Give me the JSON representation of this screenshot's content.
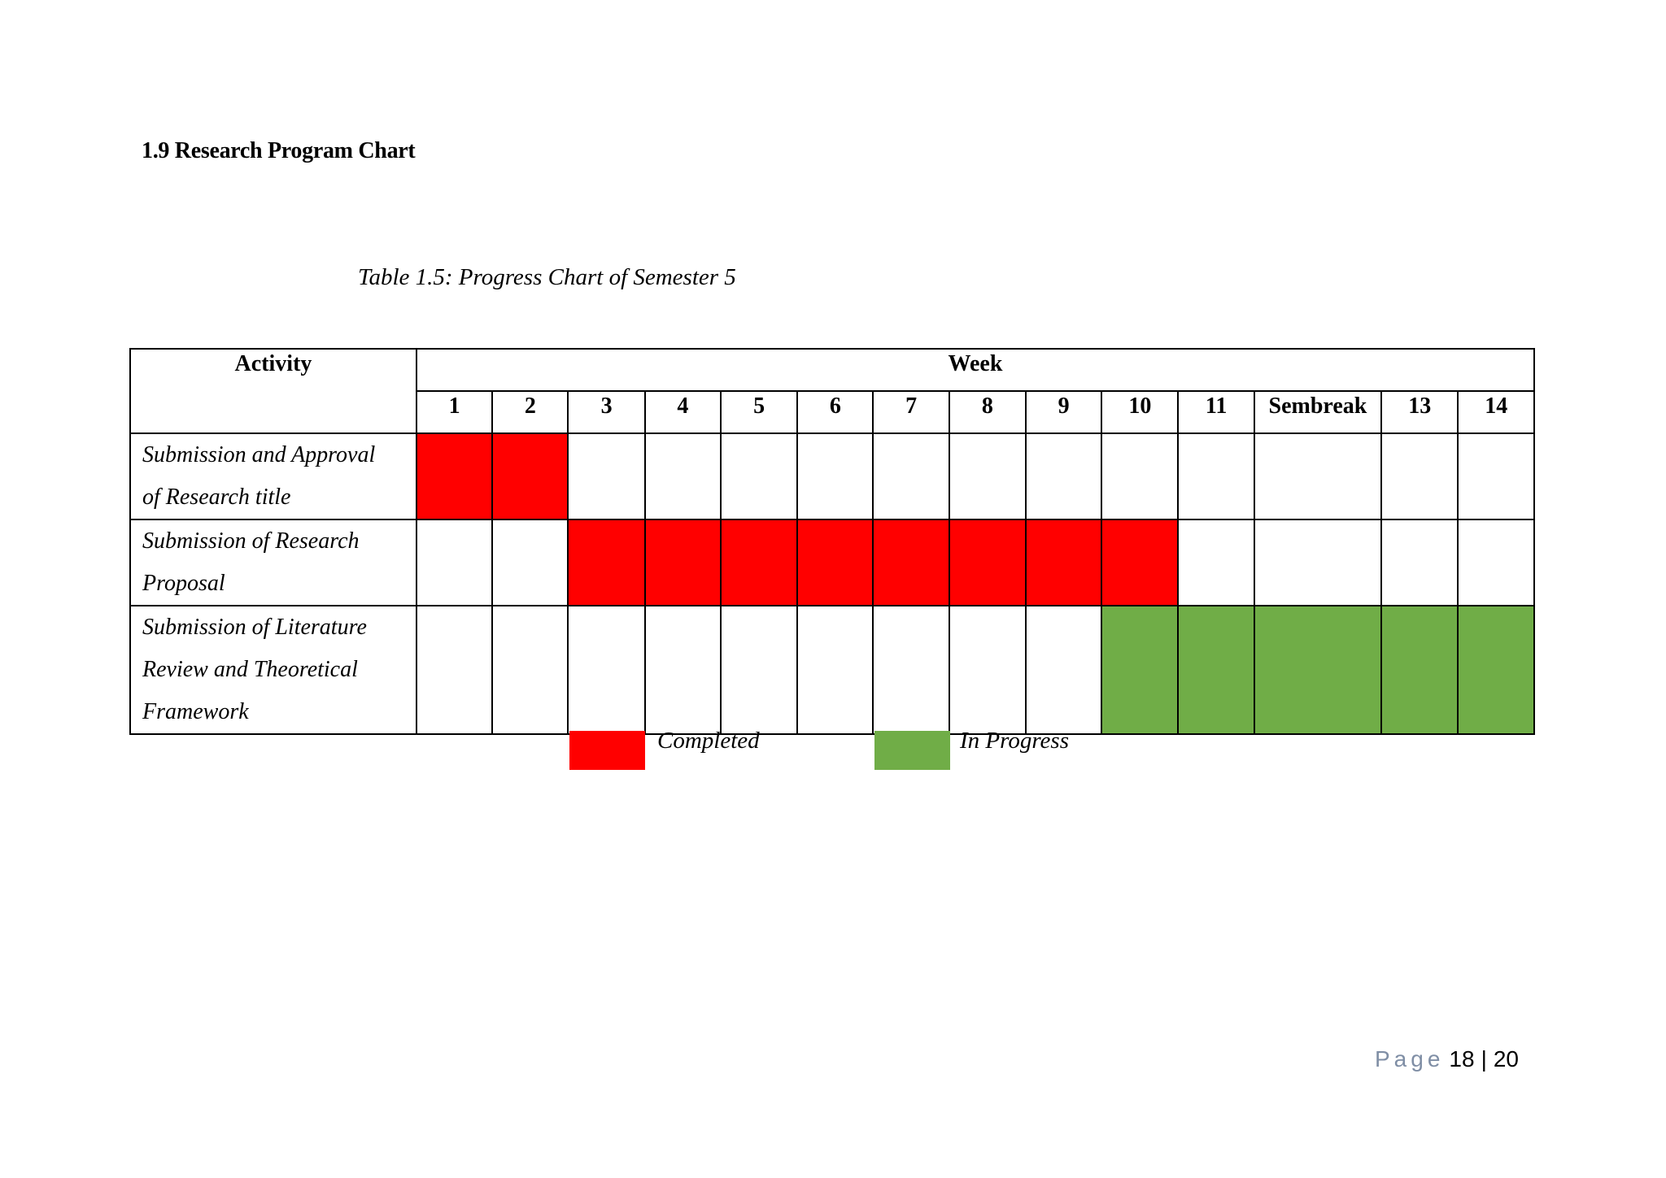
{
  "heading": "1.9  Research Program  Chart",
  "caption": "Table 1.5: Progress Chart of Semester 5",
  "table": {
    "activity_header": "Activity",
    "week_header": "Week",
    "weeks": [
      "1",
      "2",
      "3",
      "4",
      "5",
      "6",
      "7",
      "8",
      "9",
      "10",
      "11",
      "Sembreak",
      "13",
      "14"
    ],
    "rows": [
      {
        "lines": [
          "Submission and Approval",
          "of Research  title"
        ],
        "status": [
          "completed",
          "completed",
          "",
          "",
          "",
          "",
          "",
          "",
          "",
          "",
          "",
          "",
          "",
          ""
        ]
      },
      {
        "lines": [
          "Submission of Research",
          "Proposal"
        ],
        "status": [
          "",
          "",
          "completed",
          "completed",
          "completed",
          "completed",
          "completed",
          "completed",
          "completed",
          "completed",
          "",
          "",
          "",
          ""
        ]
      },
      {
        "lines": [
          "Submission of Literature",
          "Review and Theoretical",
          "Framework"
        ],
        "status": [
          "",
          "",
          "",
          "",
          "",
          "",
          "",
          "",
          "",
          "in-progress",
          "in-progress",
          "in-progress",
          "in-progress",
          "in-progress"
        ]
      }
    ]
  },
  "legend": {
    "completed_label": "Completed",
    "in_progress_label": "In Progress",
    "completed_color": "#ff0000",
    "in_progress_color": "#70ad47"
  },
  "footer": {
    "page_word": "Page",
    "current": "18",
    "separator": "|",
    "total": "20"
  }
}
